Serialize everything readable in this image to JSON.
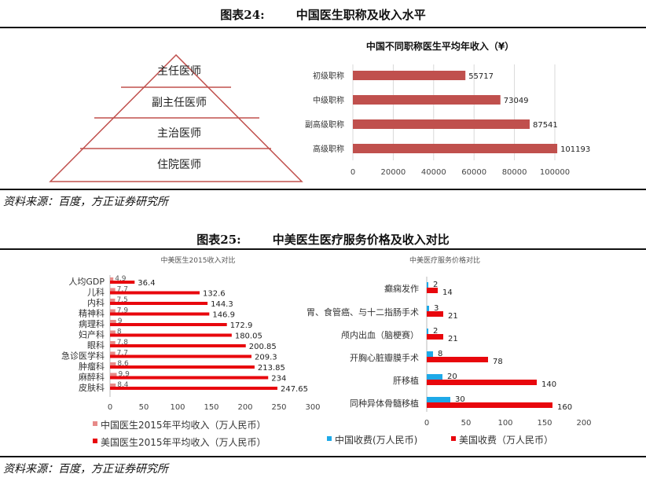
{
  "figure24": {
    "number": "图表24:",
    "title": "中国医生职称及收入水平",
    "source": "资料来源：百度，方正证券研究所",
    "pyramid_levels": [
      "主任医师",
      "副主任医师",
      "主治医师",
      "住院医师"
    ]
  },
  "figure25": {
    "number": "图表25:",
    "title": "中美医生医疗服务价格及收入对比",
    "source": "资料来源：百度，方正证券研究所"
  },
  "colors": {
    "red": "#c0504d",
    "us_red": "#e8070d",
    "cn_pink": "#e78a88",
    "cn_blue": "#1ea9e8"
  },
  "chart_data": [
    {
      "type": "bar",
      "orientation": "horizontal",
      "title": "中国不同职称医生平均年收入（¥）",
      "categories": [
        "初级职称",
        "中级职称",
        "副高级职称",
        "高级职称"
      ],
      "values": [
        55717,
        73049,
        87541,
        101193
      ],
      "value_labels": [
        "55717",
        "73049",
        "87541",
        "101193"
      ],
      "xlim": [
        0,
        120000
      ],
      "xticks": [
        "0",
        "20000",
        "40000",
        "60000",
        "80000",
        "100000"
      ],
      "grid": true
    },
    {
      "type": "bar",
      "orientation": "horizontal",
      "title": "中美医生2015收入对比",
      "categories": [
        "人均GDP",
        "儿科",
        "内科",
        "精神科",
        "病理科",
        "妇产科",
        "眼科",
        "急诊医学科",
        "肿瘤科",
        "麻醉科",
        "皮肤科"
      ],
      "series": [
        {
          "name": "中国医生2015年平均收入（万人民币）",
          "values": [
            4.9,
            7.7,
            7.5,
            7.9,
            9,
            8,
            7.8,
            7.7,
            8.6,
            9.9,
            8.4
          ],
          "labels": [
            "4.9",
            "7.7",
            "7.5",
            "7.9",
            "9",
            "8",
            "7.8",
            "7.7",
            "8.6",
            "9.9",
            "8.4"
          ]
        },
        {
          "name": "美国医生2015年平均收入（万人民币）",
          "values": [
            36.4,
            132.6,
            144.3,
            146.9,
            172.9,
            180.05,
            200.85,
            209.3,
            213.85,
            234,
            247.65
          ],
          "labels": [
            "36.4",
            "132.6",
            "144.3",
            "146.9",
            "172.9",
            "180.05",
            "200.85",
            "209.3",
            "213.85",
            "234",
            "247.65"
          ]
        }
      ],
      "xlim": [
        0,
        300
      ],
      "xticks": [
        "0",
        "50",
        "100",
        "150",
        "200",
        "250",
        "300"
      ],
      "legend": "bottom",
      "grid": false
    },
    {
      "type": "bar",
      "orientation": "horizontal",
      "title": "中美医疗服务价格对比",
      "categories": [
        "癫痫发作",
        "胃、食管癌、与十二指肠手术",
        "颅内出血（脑梗赛）",
        "开胸心脏瓣膜手术",
        "肝移植",
        "同种异体骨髓移植"
      ],
      "series": [
        {
          "name": "中国收费(万人民币)",
          "values": [
            2,
            3,
            2,
            8,
            20,
            30
          ],
          "labels": [
            "2",
            "3",
            "2",
            "8",
            "20",
            "30"
          ]
        },
        {
          "name": "美国收费（万人民币）",
          "values": [
            14,
            21,
            21,
            78,
            140,
            160
          ],
          "labels": [
            "14",
            "21",
            "21",
            "78",
            "140",
            "160"
          ]
        }
      ],
      "xlim": [
        0,
        200
      ],
      "xticks": [
        "0",
        "50",
        "100",
        "150",
        "200"
      ],
      "legend": "bottom",
      "grid": false
    }
  ]
}
